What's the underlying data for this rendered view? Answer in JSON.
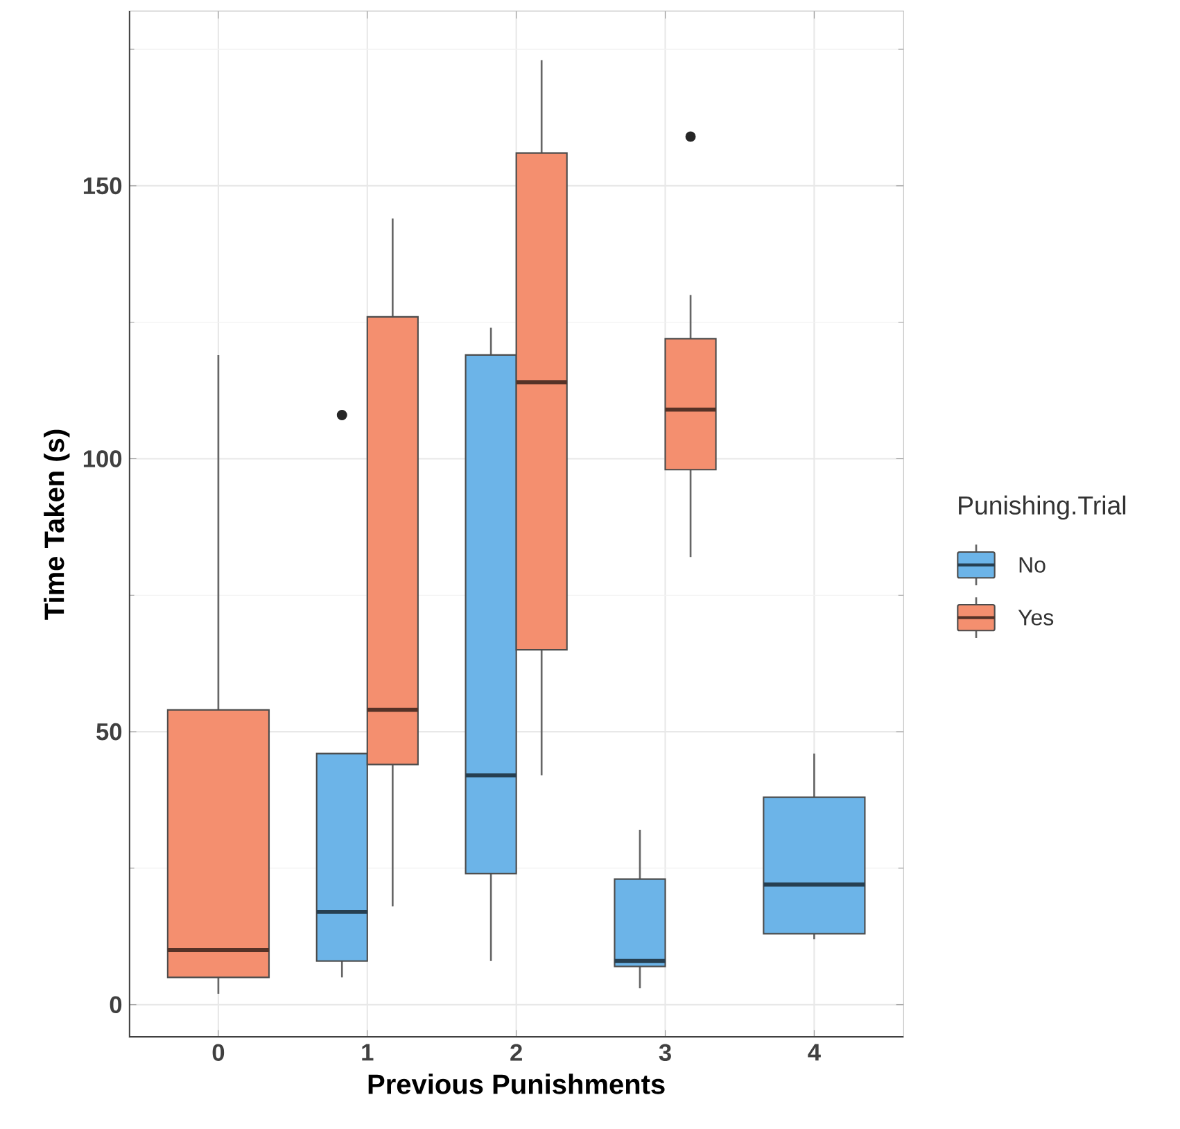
{
  "chart_data": {
    "type": "box",
    "xlabel": "Previous Punishments",
    "ylabel": "Time Taken (s)",
    "legend_title": "Punishing.Trial",
    "legend": "right",
    "grid": true,
    "categories": [
      "0",
      "1",
      "2",
      "3",
      "4"
    ],
    "ylim": [
      -6,
      182
    ],
    "yticks": [
      0,
      50,
      100,
      150
    ],
    "series": [
      {
        "name": "No",
        "color": "#6cb4e8",
        "boxes": [
          null,
          {
            "low": 5,
            "q1": 8,
            "median": 17,
            "q3": 46,
            "high": 46,
            "outliers": [
              108
            ]
          },
          {
            "low": 8,
            "q1": 24,
            "median": 42,
            "q3": 119,
            "high": 124
          },
          {
            "low": 3,
            "q1": 7,
            "median": 8,
            "q3": 23,
            "high": 32
          },
          {
            "low": 12,
            "q1": 13,
            "median": 22,
            "q3": 38,
            "high": 46
          }
        ]
      },
      {
        "name": "Yes",
        "color": "#f48f6f",
        "boxes": [
          {
            "low": 2,
            "q1": 5,
            "median": 10,
            "q3": 54,
            "high": 119
          },
          {
            "low": 18,
            "q1": 44,
            "median": 54,
            "q3": 126,
            "high": 144
          },
          {
            "low": 42,
            "q1": 65,
            "median": 114,
            "q3": 156,
            "high": 173
          },
          {
            "low": 82,
            "q1": 98,
            "median": 109,
            "q3": 122,
            "high": 130,
            "outliers": [
              159
            ]
          },
          null
        ]
      }
    ]
  }
}
